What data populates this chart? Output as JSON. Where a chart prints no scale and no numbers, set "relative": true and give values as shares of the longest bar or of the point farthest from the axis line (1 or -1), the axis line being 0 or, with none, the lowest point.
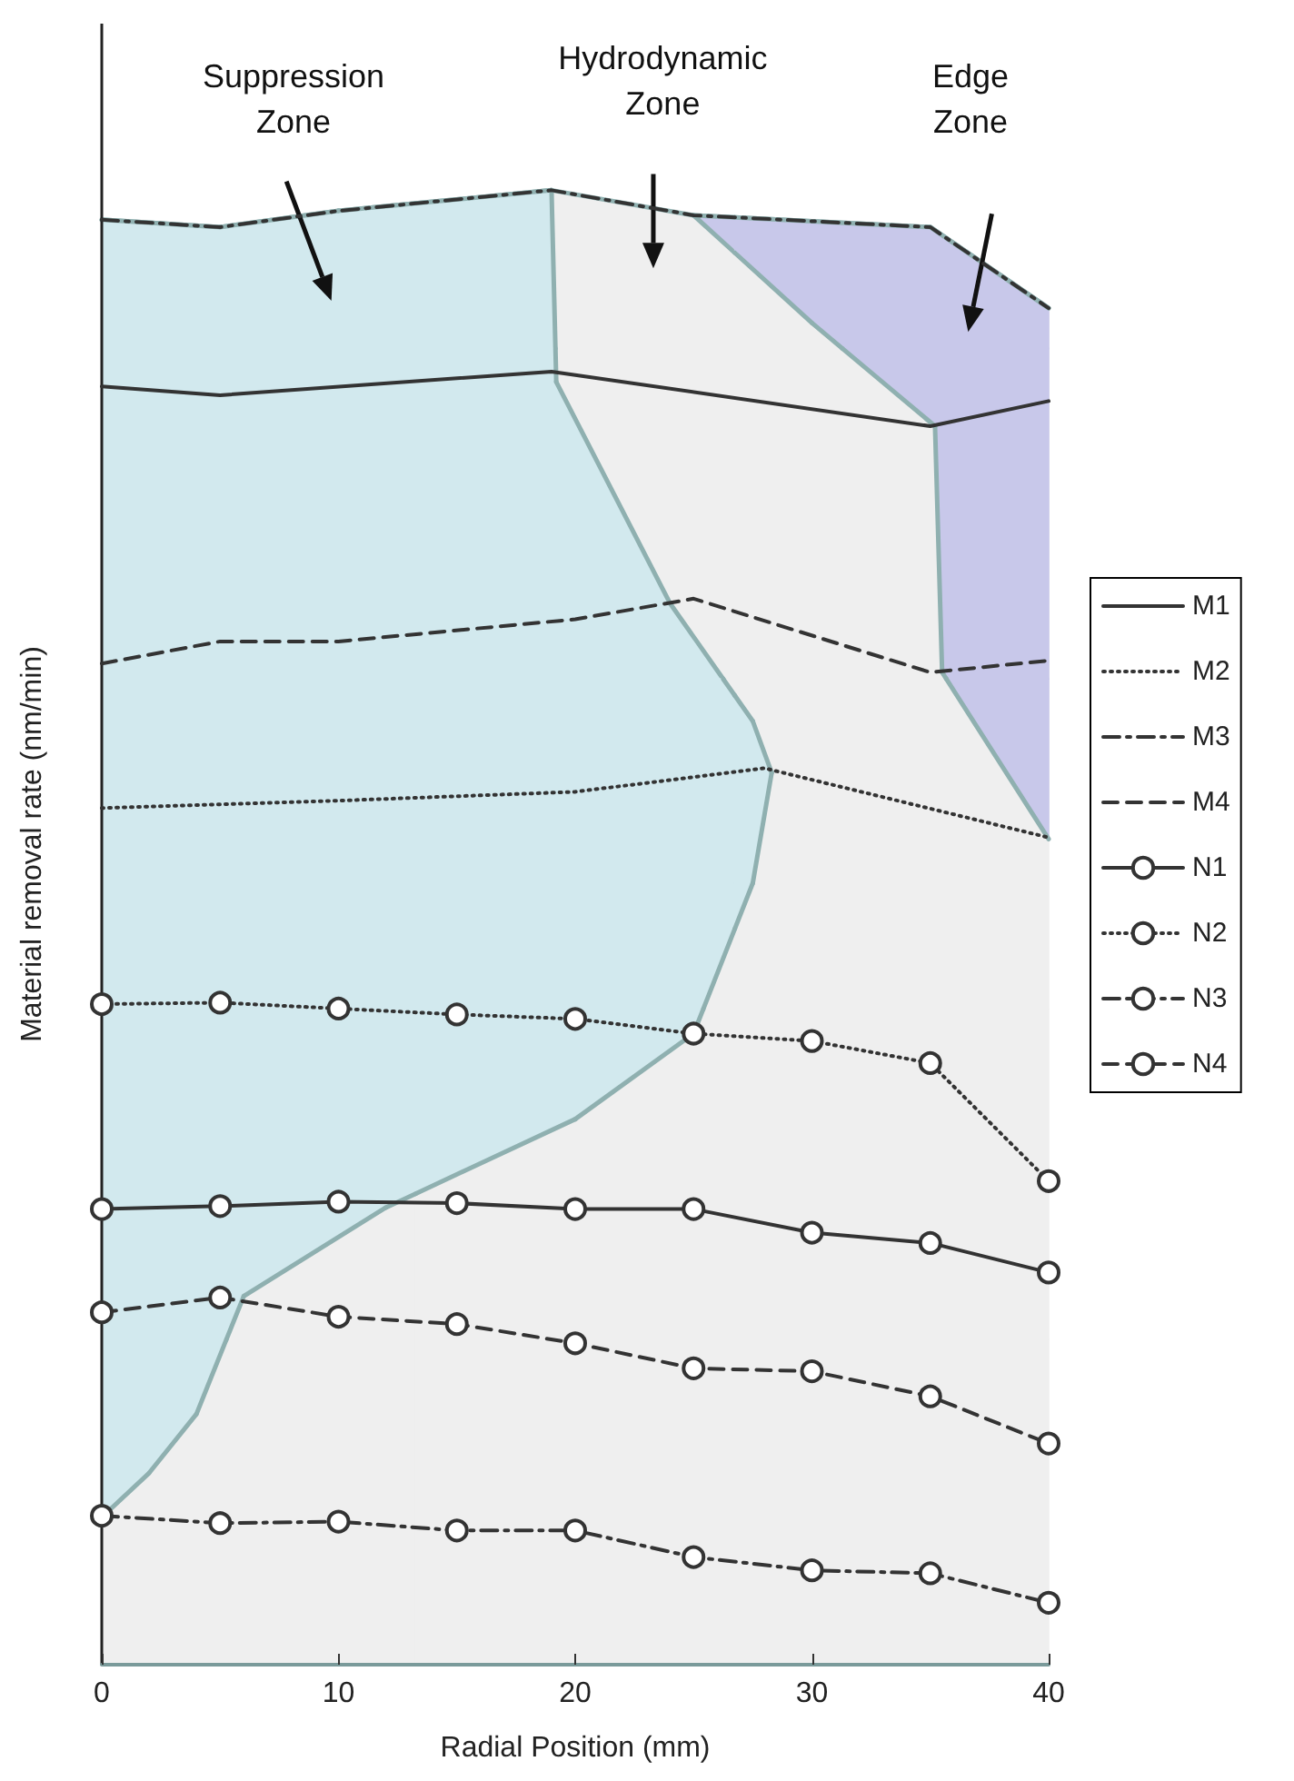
{
  "chart_data": {
    "type": "line",
    "relative": true,
    "xlabel": "Radial Position (mm)",
    "ylabel": "Material removal rate (nm/min)",
    "xlim": [
      0,
      40
    ],
    "xticks": [
      0,
      10,
      20,
      30,
      40
    ],
    "grid": false,
    "legend": "right",
    "annotations": [
      "Suppression\nZone",
      "Hydrodynamic\nZone",
      "Edge\nZone"
    ],
    "series": [
      {
        "name": "M1",
        "color": "#333333",
        "line_style": "solid",
        "marker": "none",
        "x": [
          0,
          5,
          19,
          35,
          40
        ],
        "values": [
          0.867,
          0.861,
          0.877,
          0.84,
          0.857
        ]
      },
      {
        "name": "M2",
        "color": "#333333",
        "line_style": "dotted",
        "marker": "none",
        "x": [
          0,
          10,
          20,
          28,
          40
        ],
        "values": [
          0.581,
          0.586,
          0.592,
          0.608,
          0.561
        ]
      },
      {
        "name": "M3",
        "color": "#333333",
        "line_style": "dashdot",
        "marker": "none",
        "x": [
          0,
          5,
          10,
          19,
          25,
          35,
          40
        ],
        "values": [
          0.98,
          0.975,
          0.986,
          1,
          0.983,
          0.975,
          0.92
        ]
      },
      {
        "name": "M4",
        "color": "#333333",
        "line_style": "dashed",
        "marker": "none",
        "x": [
          0,
          5,
          10,
          20,
          25,
          35,
          40
        ],
        "values": [
          0.679,
          0.694,
          0.694,
          0.709,
          0.723,
          0.673,
          0.681
        ]
      },
      {
        "name": "N1",
        "color": "#333333",
        "line_style": "solid",
        "marker": "circle",
        "x": [
          0,
          5,
          10,
          15,
          20,
          25,
          30,
          35,
          40
        ],
        "values": [
          0.309,
          0.311,
          0.314,
          0.313,
          0.309,
          0.309,
          0.293,
          0.286,
          0.266
        ]
      },
      {
        "name": "N2",
        "color": "#333333",
        "line_style": "dotted",
        "marker": "circle",
        "x": [
          0,
          5,
          10,
          15,
          20,
          25,
          30,
          35,
          40
        ],
        "values": [
          0.448,
          0.449,
          0.445,
          0.441,
          0.438,
          0.428,
          0.423,
          0.408,
          0.328
        ]
      },
      {
        "name": "N3",
        "color": "#333333",
        "line_style": "dashdot",
        "marker": "circle",
        "x": [
          0,
          5,
          10,
          15,
          20,
          25,
          30,
          35,
          40
        ],
        "values": [
          0.101,
          0.096,
          0.097,
          0.091,
          0.091,
          0.073,
          0.064,
          0.062,
          0.042
        ]
      },
      {
        "name": "N4",
        "color": "#333333",
        "line_style": "dashed",
        "marker": "circle",
        "x": [
          0,
          5,
          10,
          15,
          20,
          25,
          30,
          35,
          40
        ],
        "values": [
          0.239,
          0.249,
          0.236,
          0.231,
          0.218,
          0.201,
          0.199,
          0.182,
          0.15
        ]
      }
    ]
  }
}
